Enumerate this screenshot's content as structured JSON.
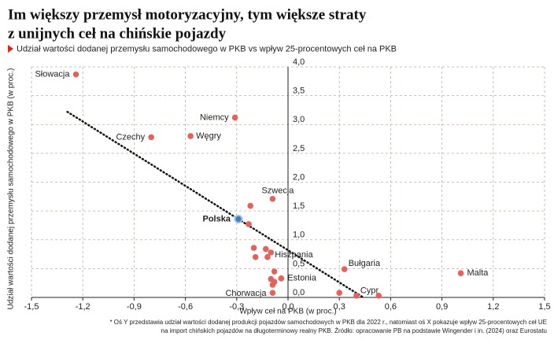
{
  "chart_data": {
    "type": "scatter",
    "title_lines": [
      "Im większy przemysł motoryzacyjny, tym większe straty",
      "z unijnych ceł na chińskie pojazdy"
    ],
    "subtitle": "Udział wartości dodanej przemysłu samochodowego w PKB vs wpływ 25-procentowych ceł na PKB",
    "x_label": "Wpływ ceł na PKB (w proc.)",
    "y_label": "Udział wartości dodanej przemysłu samochodowego w PKB (w proc.)",
    "footnote_lines": [
      "* Oś Y przedstawia udział wartości dodanej produkcji pojazdów samochodowych w PKB dla 2022 r., natomiast oś X pokazuje wpływ 25-procentowych ceł UE",
      "na import chińskich pojazdów na długoterminowy realny PKB. Źródło: opracowanie PB na podstawie Wingender i in. (2024) oraz Eurostatu"
    ],
    "color": "#e8605a",
    "highlight_color": "#3a7fc4",
    "highlight": "Polska",
    "xlim": [
      -1.5,
      1.5
    ],
    "ylim": [
      0,
      4
    ],
    "xticks": [
      {
        "value": -1.5,
        "label": "-1,5"
      },
      {
        "value": -1.2,
        "label": "-1,2"
      },
      {
        "value": -0.9,
        "label": "-0,9"
      },
      {
        "value": -0.6,
        "label": "-0,6"
      },
      {
        "value": -0.3,
        "label": "-0,3"
      },
      {
        "value": 0,
        "label": "0,0"
      },
      {
        "value": 0.3,
        "label": "0,3"
      },
      {
        "value": 0.6,
        "label": "0,6"
      },
      {
        "value": 0.9,
        "label": "0,9"
      },
      {
        "value": 1.2,
        "label": "1,2"
      },
      {
        "value": 1.5,
        "label": "1,5"
      }
    ],
    "yticks": [
      {
        "value": 0,
        "label": "0,0"
      },
      {
        "value": 0.5,
        "label": "0,5"
      },
      {
        "value": 1,
        "label": "1,0"
      },
      {
        "value": 1.5,
        "label": "1,5"
      },
      {
        "value": 2,
        "label": "2,0"
      },
      {
        "value": 2.5,
        "label": "2,5"
      },
      {
        "value": 3,
        "label": "3,0"
      },
      {
        "value": 3.5,
        "label": "3,5"
      },
      {
        "value": 4,
        "label": "4,0"
      }
    ],
    "grid": true,
    "trendline": {
      "x": [
        -1.29,
        0.44
      ],
      "y": [
        3.22,
        0
      ]
    },
    "points": [
      {
        "label": "Słowacja",
        "x": -1.24,
        "y": 3.87
      },
      {
        "label": "Niemcy",
        "x": -0.31,
        "y": 3.12
      },
      {
        "label": "Czechy",
        "x": -0.8,
        "y": 2.78
      },
      {
        "label": "Węgry",
        "x": -0.57,
        "y": 2.8
      },
      {
        "label": "Szwecja",
        "x": -0.09,
        "y": 1.71
      },
      {
        "x": -0.22,
        "y": 1.59
      },
      {
        "label": "Polska",
        "x": -0.29,
        "y": 1.36
      },
      {
        "x": -0.23,
        "y": 1.27
      },
      {
        "x": -0.2,
        "y": 0.86
      },
      {
        "x": -0.13,
        "y": 0.84
      },
      {
        "label": "Hiszpania",
        "x": -0.1,
        "y": 0.78
      },
      {
        "x": -0.19,
        "y": 0.7
      },
      {
        "x": -0.12,
        "y": 0.7
      },
      {
        "x": -0.08,
        "y": 0.45
      },
      {
        "label": "Estonia",
        "x": -0.04,
        "y": 0.33
      },
      {
        "x": -0.1,
        "y": 0.32
      },
      {
        "x": -0.08,
        "y": 0.27
      },
      {
        "x": -0.09,
        "y": 0.22
      },
      {
        "label": "Chorwacja",
        "x": -0.09,
        "y": 0.08
      },
      {
        "label": "Bułgaria",
        "x": 0.33,
        "y": 0.49
      },
      {
        "label": "Malta",
        "x": 1.01,
        "y": 0.42
      },
      {
        "x": 0.3,
        "y": 0.08
      },
      {
        "label": "Cypr",
        "x": 0.4,
        "y": 0.03
      },
      {
        "x": 0.53,
        "y": 0.03
      }
    ]
  }
}
